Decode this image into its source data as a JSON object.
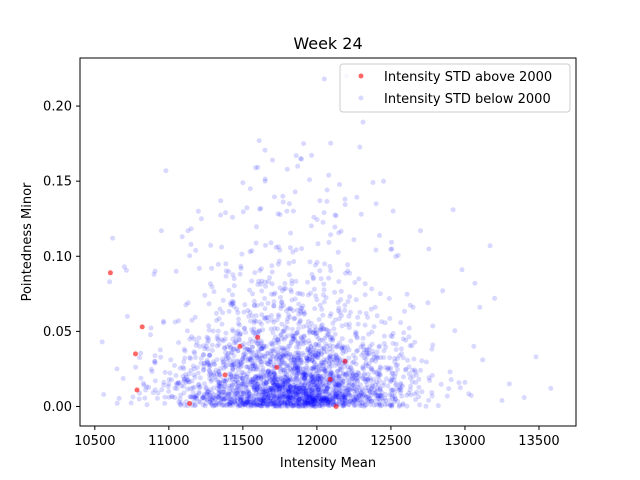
{
  "chart_data": {
    "type": "scatter",
    "title": "Week 24",
    "xlabel": "Intensity Mean",
    "ylabel": "Pointedness Minor",
    "xlim": [
      10400,
      13750
    ],
    "ylim": [
      -0.013,
      0.232
    ],
    "xticks": [
      10500,
      11000,
      11500,
      12000,
      12500,
      13000,
      13500
    ],
    "yticks": [
      0.0,
      0.05,
      0.1,
      0.15,
      0.2
    ],
    "xtick_labels": [
      "10500",
      "11000",
      "11500",
      "12000",
      "12500",
      "13000",
      "13500"
    ],
    "ytick_labels": [
      "0.00",
      "0.05",
      "0.10",
      "0.15",
      "0.20"
    ],
    "grid": false,
    "legend_position": "top-right",
    "series": [
      {
        "name": "Intensity STD above 2000",
        "color": "#ff0000",
        "points": [
          [
            10605,
            0.089
          ],
          [
            10820,
            0.053
          ],
          [
            10775,
            0.035
          ],
          [
            10785,
            0.011
          ],
          [
            11140,
            0.002
          ],
          [
            11380,
            0.021
          ],
          [
            11480,
            0.04
          ],
          [
            11600,
            0.046
          ],
          [
            11730,
            0.026
          ],
          [
            12090,
            0.018
          ],
          [
            12130,
            0.0
          ],
          [
            12190,
            0.03
          ]
        ]
      },
      {
        "name": "Intensity STD below 2000",
        "color": "#0000ff",
        "outliers": [
          [
            10620,
            0.112
          ],
          [
            10700,
            0.093
          ],
          [
            10550,
            0.043
          ],
          [
            10600,
            0.083
          ],
          [
            10980,
            0.157
          ],
          [
            10560,
            0.008
          ],
          [
            10650,
            0.025
          ],
          [
            10720,
            0.06
          ],
          [
            10900,
            0.088
          ],
          [
            11090,
            0.113
          ],
          [
            11220,
            0.125
          ],
          [
            11350,
            0.137
          ],
          [
            11430,
            0.126
          ],
          [
            11610,
            0.177
          ],
          [
            11700,
            0.164
          ],
          [
            11770,
            0.14
          ],
          [
            11860,
            0.167
          ],
          [
            11890,
            0.165
          ],
          [
            11910,
            0.175
          ],
          [
            12020,
            0.137
          ],
          [
            12080,
            0.154
          ],
          [
            12190,
            0.138
          ],
          [
            12250,
            0.111
          ],
          [
            12400,
            0.135
          ],
          [
            12700,
            0.117
          ],
          [
            12920,
            0.131
          ],
          [
            13170,
            0.107
          ],
          [
            12980,
            0.091
          ],
          [
            12850,
            0.077
          ],
          [
            13100,
            0.066
          ],
          [
            13200,
            0.072
          ],
          [
            13480,
            0.033
          ],
          [
            13580,
            0.012
          ],
          [
            13400,
            0.006
          ],
          [
            13250,
            0.004
          ],
          [
            13000,
            0.016
          ],
          [
            12900,
            0.023
          ],
          [
            12750,
            0.069
          ],
          [
            11500,
            0.149
          ],
          [
            11550,
            0.145
          ],
          [
            11650,
            0.15
          ],
          [
            11800,
            0.158
          ],
          [
            11950,
            0.151
          ],
          [
            12300,
            0.128
          ],
          [
            12450,
            0.15
          ],
          [
            11200,
            0.13
          ],
          [
            10950,
            0.117
          ],
          [
            11050,
            0.09
          ],
          [
            11150,
            0.108
          ],
          [
            12200,
            0.22
          ],
          [
            12050,
            0.218
          ],
          [
            11690,
            0.109
          ],
          [
            11980,
            0.126
          ],
          [
            12130,
            0.127
          ],
          [
            10850,
            0.013
          ],
          [
            10800,
            0.005
          ],
          [
            12650,
            0.066
          ],
          [
            13060,
            0.04
          ],
          [
            13300,
            0.015
          ],
          [
            13120,
            0.031
          ]
        ],
        "cluster": {
          "x_mean": 11830,
          "x_sd": 390,
          "y_scale": 0.026,
          "count": 2600,
          "seed": 24
        }
      }
    ]
  }
}
